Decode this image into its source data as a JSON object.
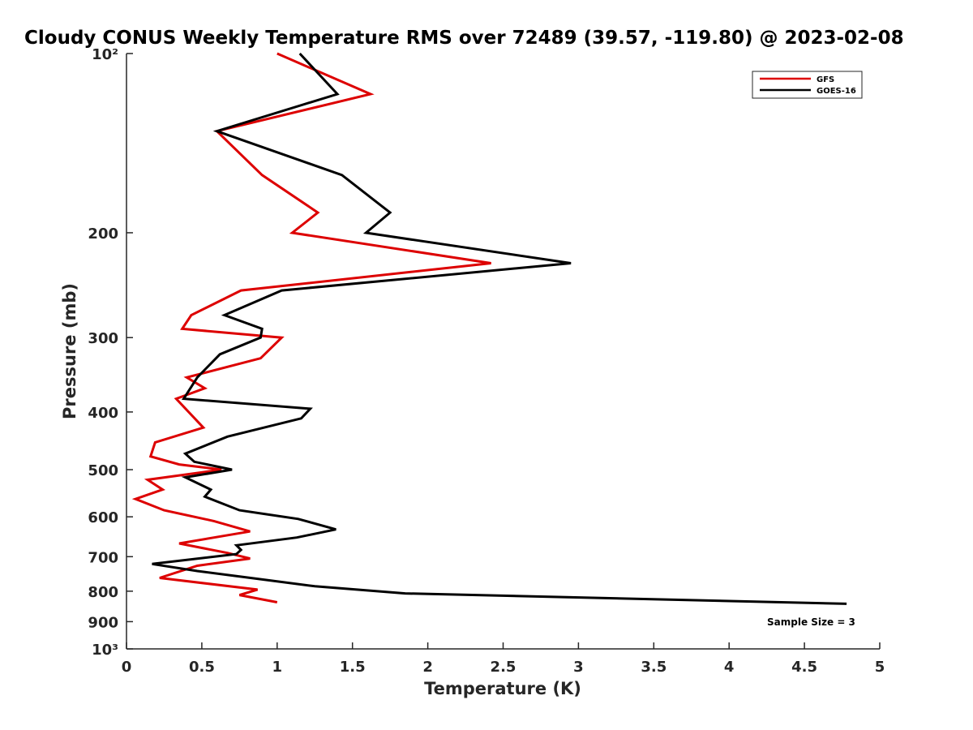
{
  "chart_data": {
    "type": "line",
    "title": "Cloudy CONUS Weekly Temperature RMS over 72489 (39.57, -119.80) @ 2023-02-08",
    "xlabel": "Temperature (K)",
    "ylabel": "Pressure (mb)",
    "xlim": [
      0,
      5
    ],
    "ylim": [
      100,
      1000
    ],
    "yscale": "log",
    "y_reversed": true,
    "xticks": [
      0,
      0.5,
      1,
      1.5,
      2,
      2.5,
      3,
      3.5,
      4,
      4.5,
      5
    ],
    "xtick_labels": [
      "0",
      "0.5",
      "1",
      "1.5",
      "2",
      "2.5",
      "3",
      "3.5",
      "4",
      "4.5",
      "5"
    ],
    "yticks": [
      100,
      200,
      300,
      400,
      500,
      600,
      700,
      800,
      900,
      1000
    ],
    "ytick_labels": [
      "10²",
      "200",
      "300",
      "400",
      "500",
      "600",
      "700",
      "800",
      "900",
      "10³"
    ],
    "grid": false,
    "legend": "top-right",
    "annotation": "Sample Size = 3",
    "series": [
      {
        "name": "GFS",
        "color": "#dd0000",
        "points": [
          [
            1.0,
            100
          ],
          [
            1.62,
            117
          ],
          [
            0.6,
            135
          ],
          [
            0.9,
            160
          ],
          [
            1.27,
            185
          ],
          [
            1.1,
            200
          ],
          [
            2.42,
            225
          ],
          [
            0.76,
            250
          ],
          [
            0.43,
            275
          ],
          [
            0.37,
            290
          ],
          [
            1.03,
            300
          ],
          [
            0.89,
            325
          ],
          [
            0.4,
            350
          ],
          [
            0.52,
            365
          ],
          [
            0.33,
            380
          ],
          [
            0.51,
            425
          ],
          [
            0.19,
            450
          ],
          [
            0.16,
            475
          ],
          [
            0.35,
            490
          ],
          [
            0.63,
            500
          ],
          [
            0.14,
            520
          ],
          [
            0.24,
            540
          ],
          [
            0.06,
            560
          ],
          [
            0.25,
            585
          ],
          [
            0.58,
            610
          ],
          [
            0.82,
            635
          ],
          [
            0.35,
            665
          ],
          [
            0.67,
            690
          ],
          [
            0.82,
            705
          ],
          [
            0.47,
            725
          ],
          [
            0.22,
            760
          ],
          [
            0.87,
            795
          ],
          [
            0.75,
            812
          ],
          [
            1.0,
            835
          ]
        ]
      },
      {
        "name": "GOES-16",
        "color": "#000000",
        "points": [
          [
            1.15,
            100
          ],
          [
            1.4,
            117
          ],
          [
            0.6,
            135
          ],
          [
            1.43,
            160
          ],
          [
            1.75,
            185
          ],
          [
            1.59,
            200
          ],
          [
            2.95,
            225
          ],
          [
            1.03,
            250
          ],
          [
            0.65,
            275
          ],
          [
            0.9,
            290
          ],
          [
            0.89,
            300
          ],
          [
            0.62,
            320
          ],
          [
            0.47,
            350
          ],
          [
            0.38,
            380
          ],
          [
            1.22,
            395
          ],
          [
            1.16,
            410
          ],
          [
            0.67,
            440
          ],
          [
            0.39,
            470
          ],
          [
            0.45,
            485
          ],
          [
            0.7,
            500
          ],
          [
            0.39,
            515
          ],
          [
            0.56,
            540
          ],
          [
            0.52,
            555
          ],
          [
            0.75,
            585
          ],
          [
            1.14,
            605
          ],
          [
            1.39,
            630
          ],
          [
            1.13,
            650
          ],
          [
            0.73,
            670
          ],
          [
            0.76,
            682
          ],
          [
            0.73,
            693
          ],
          [
            0.17,
            720
          ],
          [
            0.47,
            740
          ],
          [
            0.86,
            762
          ],
          [
            1.25,
            785
          ],
          [
            1.85,
            807
          ],
          [
            4.78,
            840
          ]
        ]
      }
    ]
  }
}
